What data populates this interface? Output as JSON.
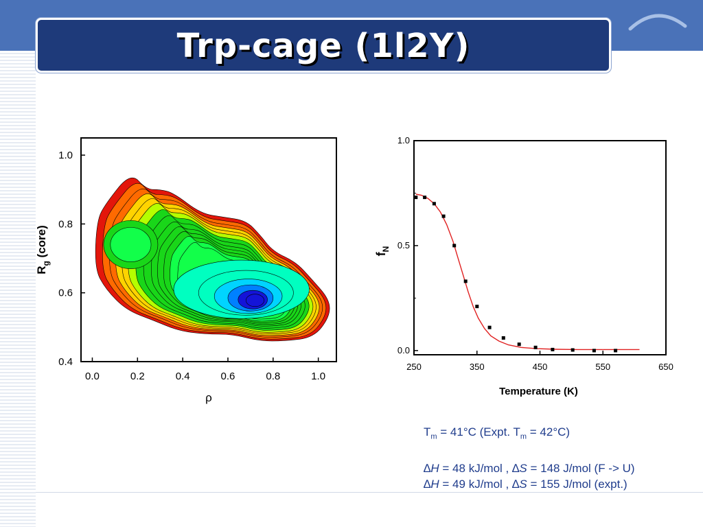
{
  "slide": {
    "title": "Trp-cage (1l2Y)"
  },
  "chart_data": [
    {
      "type": "heatmap",
      "subtype": "contour",
      "xlabel": "ρ",
      "ylabel_main": "R",
      "ylabel_sub": "g",
      "ylabel_rest": " (core)",
      "xlim": [
        -0.05,
        1.08
      ],
      "ylim": [
        0.4,
        1.05
      ],
      "xticks": [
        "0.0",
        "0.2",
        "0.4",
        "0.6",
        "0.8",
        "1.0"
      ],
      "xtick_values": [
        0.0,
        0.2,
        0.4,
        0.6,
        0.8,
        1.0
      ],
      "yticks": [
        "0.4",
        "0.6",
        "0.8",
        "1.0"
      ],
      "ytick_values": [
        0.4,
        0.6,
        0.8,
        1.0
      ],
      "colormap": [
        "#e3160b",
        "#ff6a00",
        "#ffd300",
        "#b5ff00",
        "#19d619",
        "#12ff4a",
        "#00ffc0",
        "#00d4ff",
        "#0080ff",
        "#1414d8"
      ],
      "basin_center": {
        "x": 0.7,
        "y": 0.58
      }
    },
    {
      "type": "line",
      "xlabel": "Temperature (K)",
      "ylabel_main": "f",
      "ylabel_sub": "N",
      "xlim": [
        250,
        650
      ],
      "ylim": [
        -0.02,
        1.0
      ],
      "xticks": [
        "250",
        "350",
        "450",
        "550",
        "650"
      ],
      "xtick_values": [
        250,
        350,
        450,
        550,
        650
      ],
      "yticks": [
        "0.0",
        "0.5",
        "1.0"
      ],
      "ytick_values": [
        0.0,
        0.5,
        1.0
      ],
      "grid": false,
      "series": [
        {
          "style": "markers",
          "color": "#000000",
          "x": [
            253,
            267,
            282,
            297,
            314,
            332,
            350,
            370,
            392,
            417,
            443,
            470,
            502,
            536,
            570
          ],
          "y": [
            0.73,
            0.73,
            0.7,
            0.64,
            0.5,
            0.33,
            0.21,
            0.11,
            0.06,
            0.03,
            0.015,
            0.005,
            0.003,
            0.0,
            0.0
          ]
        },
        {
          "style": "line",
          "color": "#e02020",
          "fit": "two-state",
          "x": [
            253,
            262,
            272,
            282,
            292,
            302,
            312,
            320,
            328,
            336,
            344,
            352,
            362,
            372,
            385,
            400,
            420,
            445,
            475,
            510,
            550,
            590,
            608
          ],
          "y": [
            0.745,
            0.74,
            0.725,
            0.7,
            0.66,
            0.6,
            0.52,
            0.44,
            0.36,
            0.28,
            0.21,
            0.155,
            0.105,
            0.07,
            0.045,
            0.027,
            0.015,
            0.009,
            0.006,
            0.005,
            0.005,
            0.005,
            0.005
          ]
        }
      ]
    }
  ],
  "notes": {
    "line1_pre": "T",
    "line1_sub1": "m",
    "line1_mid": " = 41°C (Expt. T",
    "line1_sub2": "m",
    "line1_post": " = 42°C)",
    "line2_sym1": "∆",
    "line2_var1": "H",
    "line2_a": " = 48 kJ/mol , ",
    "line2_sym2": "∆",
    "line2_var2": "S",
    "line2_b": " = 148 J/mol (F -> U)",
    "line3_sym1": "∆",
    "line3_var1": "H",
    "line3_a": " = 49 kJ/mol , ",
    "line3_sym2": "∆",
    "line3_var2": "S",
    "line3_b": " = 155 J/mol (expt.)"
  },
  "colors": {
    "header_band": "#4a72b8",
    "title_box": "#1e3a7a",
    "notes_text": "#1f3c8c"
  }
}
